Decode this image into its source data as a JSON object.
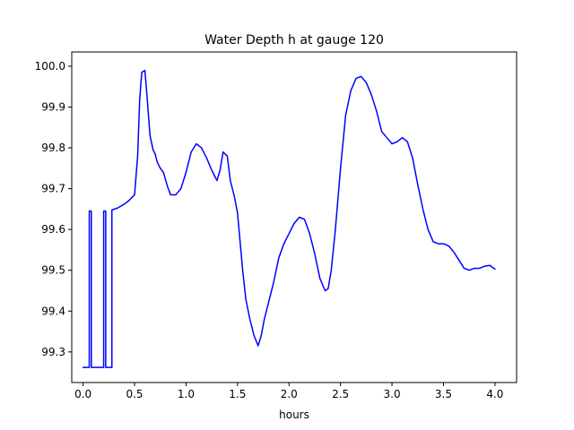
{
  "chart_data": {
    "type": "line",
    "title": "Water Depth h at gauge 120",
    "xlabel": "hours",
    "ylabel": "",
    "xlim": [
      -0.11,
      4.21
    ],
    "ylim": [
      99.225,
      100.035
    ],
    "xticks": [
      0.0,
      0.5,
      1.0,
      1.5,
      2.0,
      2.5,
      3.0,
      3.5,
      4.0
    ],
    "xtick_labels": [
      "0.0",
      "0.5",
      "1.0",
      "1.5",
      "2.0",
      "2.5",
      "3.0",
      "3.5",
      "4.0"
    ],
    "yticks": [
      99.3,
      99.4,
      99.5,
      99.6,
      99.7,
      99.8,
      99.9,
      100.0
    ],
    "ytick_labels": [
      "99.3",
      "99.4",
      "99.5",
      "99.6",
      "99.7",
      "99.8",
      "99.9",
      "100.0"
    ],
    "grid": false,
    "line_color": "#0000ff",
    "series": [
      {
        "x": [
          0.0,
          0.06,
          0.06,
          0.08,
          0.08,
          0.2,
          0.2,
          0.22,
          0.22,
          0.28,
          0.28,
          0.33,
          0.4,
          0.45,
          0.5,
          0.53,
          0.55,
          0.57,
          0.6,
          0.62,
          0.65,
          0.68,
          0.7,
          0.72,
          0.75,
          0.78,
          0.82,
          0.85,
          0.9,
          0.95,
          1.0,
          1.05,
          1.1,
          1.15,
          1.2,
          1.25,
          1.3,
          1.33,
          1.36,
          1.4,
          1.43,
          1.47,
          1.5,
          1.55,
          1.58,
          1.62,
          1.66,
          1.7,
          1.73,
          1.76,
          1.8,
          1.85,
          1.9,
          1.95,
          2.0,
          2.05,
          2.1,
          2.15,
          2.2,
          2.25,
          2.3,
          2.35,
          2.38,
          2.41,
          2.45,
          2.5,
          2.55,
          2.6,
          2.65,
          2.7,
          2.75,
          2.8,
          2.85,
          2.9,
          2.95,
          3.0,
          3.05,
          3.1,
          3.15,
          3.2,
          3.25,
          3.3,
          3.35,
          3.4,
          3.45,
          3.5,
          3.55,
          3.6,
          3.65,
          3.7,
          3.75,
          3.8,
          3.85,
          3.9,
          3.95,
          4.0
        ],
        "y": [
          99.262,
          99.262,
          99.645,
          99.645,
          99.262,
          99.262,
          99.645,
          99.645,
          99.262,
          99.262,
          99.648,
          99.652,
          99.662,
          99.672,
          99.685,
          99.78,
          99.92,
          99.985,
          99.99,
          99.93,
          99.83,
          99.795,
          99.785,
          99.765,
          99.75,
          99.74,
          99.705,
          99.685,
          99.685,
          99.7,
          99.74,
          99.79,
          99.81,
          99.8,
          99.775,
          99.745,
          99.72,
          99.745,
          99.79,
          99.78,
          99.72,
          99.68,
          99.64,
          99.5,
          99.43,
          99.38,
          99.34,
          99.315,
          99.34,
          99.38,
          99.42,
          99.47,
          99.53,
          99.565,
          99.59,
          99.615,
          99.63,
          99.625,
          99.59,
          99.54,
          99.48,
          99.45,
          99.455,
          99.5,
          99.6,
          99.75,
          99.88,
          99.94,
          99.97,
          99.975,
          99.96,
          99.93,
          99.89,
          99.84,
          99.825,
          99.81,
          99.815,
          99.825,
          99.815,
          99.775,
          99.71,
          99.65,
          99.6,
          99.57,
          99.565,
          99.565,
          99.56,
          99.545,
          99.525,
          99.505,
          99.5,
          99.505,
          99.505,
          99.51,
          99.512,
          99.503
        ]
      }
    ]
  }
}
